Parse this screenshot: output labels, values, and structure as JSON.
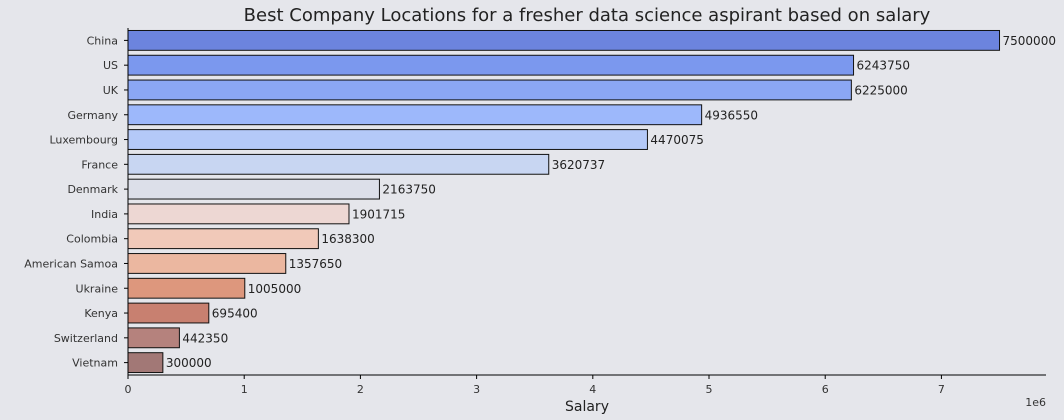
{
  "chart_data": {
    "type": "bar",
    "orientation": "horizontal",
    "title": "Best Company Locations for a fresher data science aspirant based on salary",
    "xlabel": "Salary",
    "ylabel": "",
    "x_scale_label": "1e6",
    "xlim": [
      0,
      7900000
    ],
    "x_ticks": [
      0,
      1,
      2,
      3,
      4,
      5,
      6,
      7
    ],
    "grid": false,
    "categories": [
      "China",
      "US",
      "UK",
      "Germany",
      "Luxembourg",
      "France",
      "Denmark",
      "India",
      "Colombia",
      "American Samoa",
      "Ukraine",
      "Kenya",
      "Switzerland",
      "Vietnam"
    ],
    "values": [
      7500000,
      6243750,
      6225000,
      4936550,
      4470075,
      3620737,
      2163750,
      1901715,
      1638300,
      1357650,
      1005000,
      695400,
      442350,
      300000
    ],
    "value_labels": [
      "7500000",
      "6243750",
      "6225000",
      "4936550",
      "4470075",
      "3620737",
      "2163750",
      "1901715",
      "1638300",
      "1357650",
      "1005000",
      "695400",
      "442350",
      "300000"
    ],
    "colors": [
      "#6c84de",
      "#7b98ee",
      "#8ba7f4",
      "#9db8fb",
      "#b4c9f8",
      "#c8d6f2",
      "#dcdfe9",
      "#edd7d3",
      "#f1c9b9",
      "#ebb7a0",
      "#dd977d",
      "#c88070",
      "#b5827d",
      "#a27876"
    ]
  }
}
